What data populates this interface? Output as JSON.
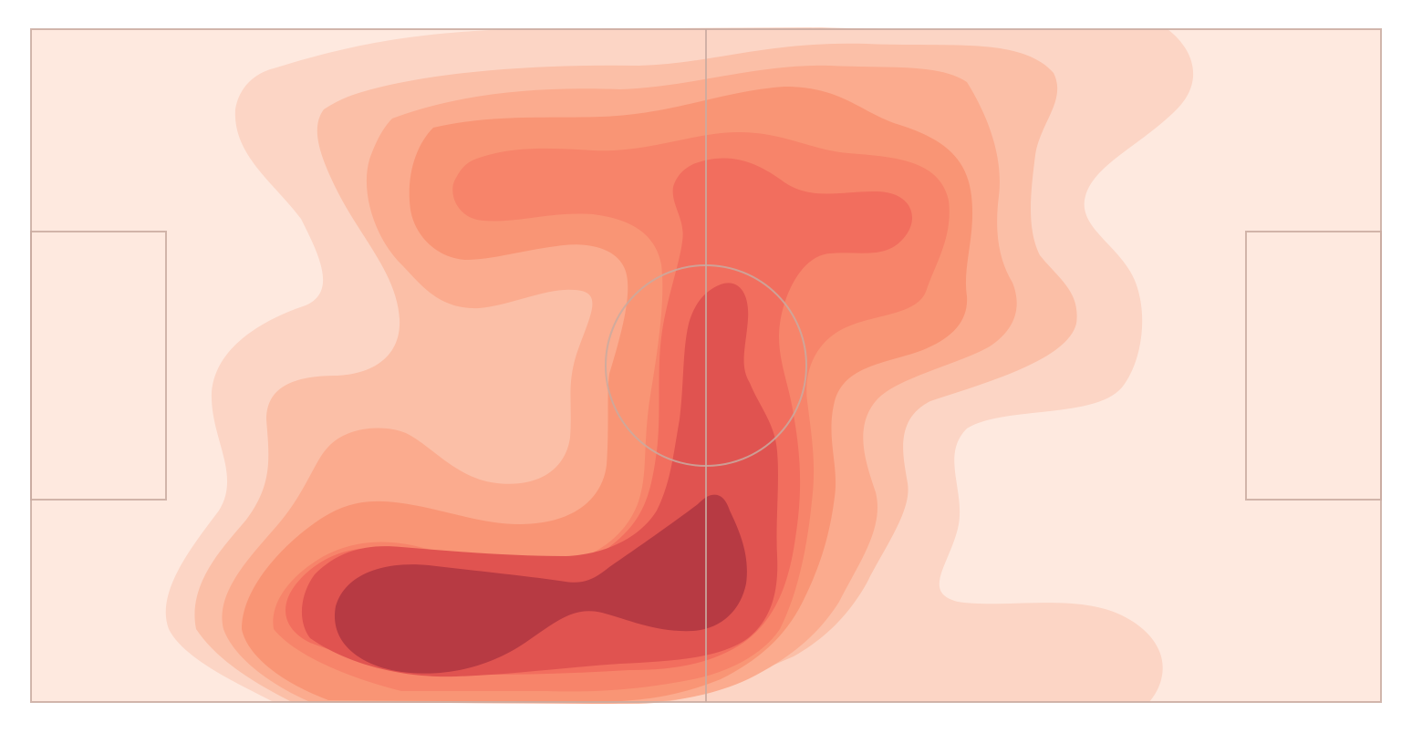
{
  "chart_data": {
    "type": "heatmap",
    "subtype": "kde-contour-on-football-pitch",
    "title": "",
    "xlabel": "",
    "ylabel": "",
    "xlim": [
      0,
      120
    ],
    "ylim": [
      0,
      80
    ],
    "grid": false,
    "legend": "none",
    "background_color": "#fee9df",
    "line_color": "#c9aaa0",
    "pitch": {
      "length": 120,
      "width": 80,
      "halfway_x": 60,
      "centre_circle_radius": 9,
      "penalty_box_depth": 12,
      "penalty_box_y": [
        24,
        56
      ]
    },
    "levels": [
      {
        "level": 1,
        "color": "#fcd5c5"
      },
      {
        "level": 2,
        "color": "#fbbfa7"
      },
      {
        "level": 3,
        "color": "#fbab8e"
      },
      {
        "level": 4,
        "color": "#f99575"
      },
      {
        "level": 5,
        "color": "#f7846a"
      },
      {
        "level": 6,
        "color": "#f26e5e"
      },
      {
        "level": 7,
        "color": "#e05350"
      },
      {
        "level": 8,
        "color": "#b73a43"
      }
    ],
    "density_centers": [
      {
        "x": 35,
        "y": 69,
        "weight": 1.0
      },
      {
        "x": 58,
        "y": 62,
        "weight": 0.85
      },
      {
        "x": 62,
        "y": 42,
        "weight": 0.7
      },
      {
        "x": 66,
        "y": 21,
        "weight": 0.6
      },
      {
        "x": 42,
        "y": 19,
        "weight": 0.45
      },
      {
        "x": 98,
        "y": 70,
        "weight": 0.2
      }
    ]
  }
}
